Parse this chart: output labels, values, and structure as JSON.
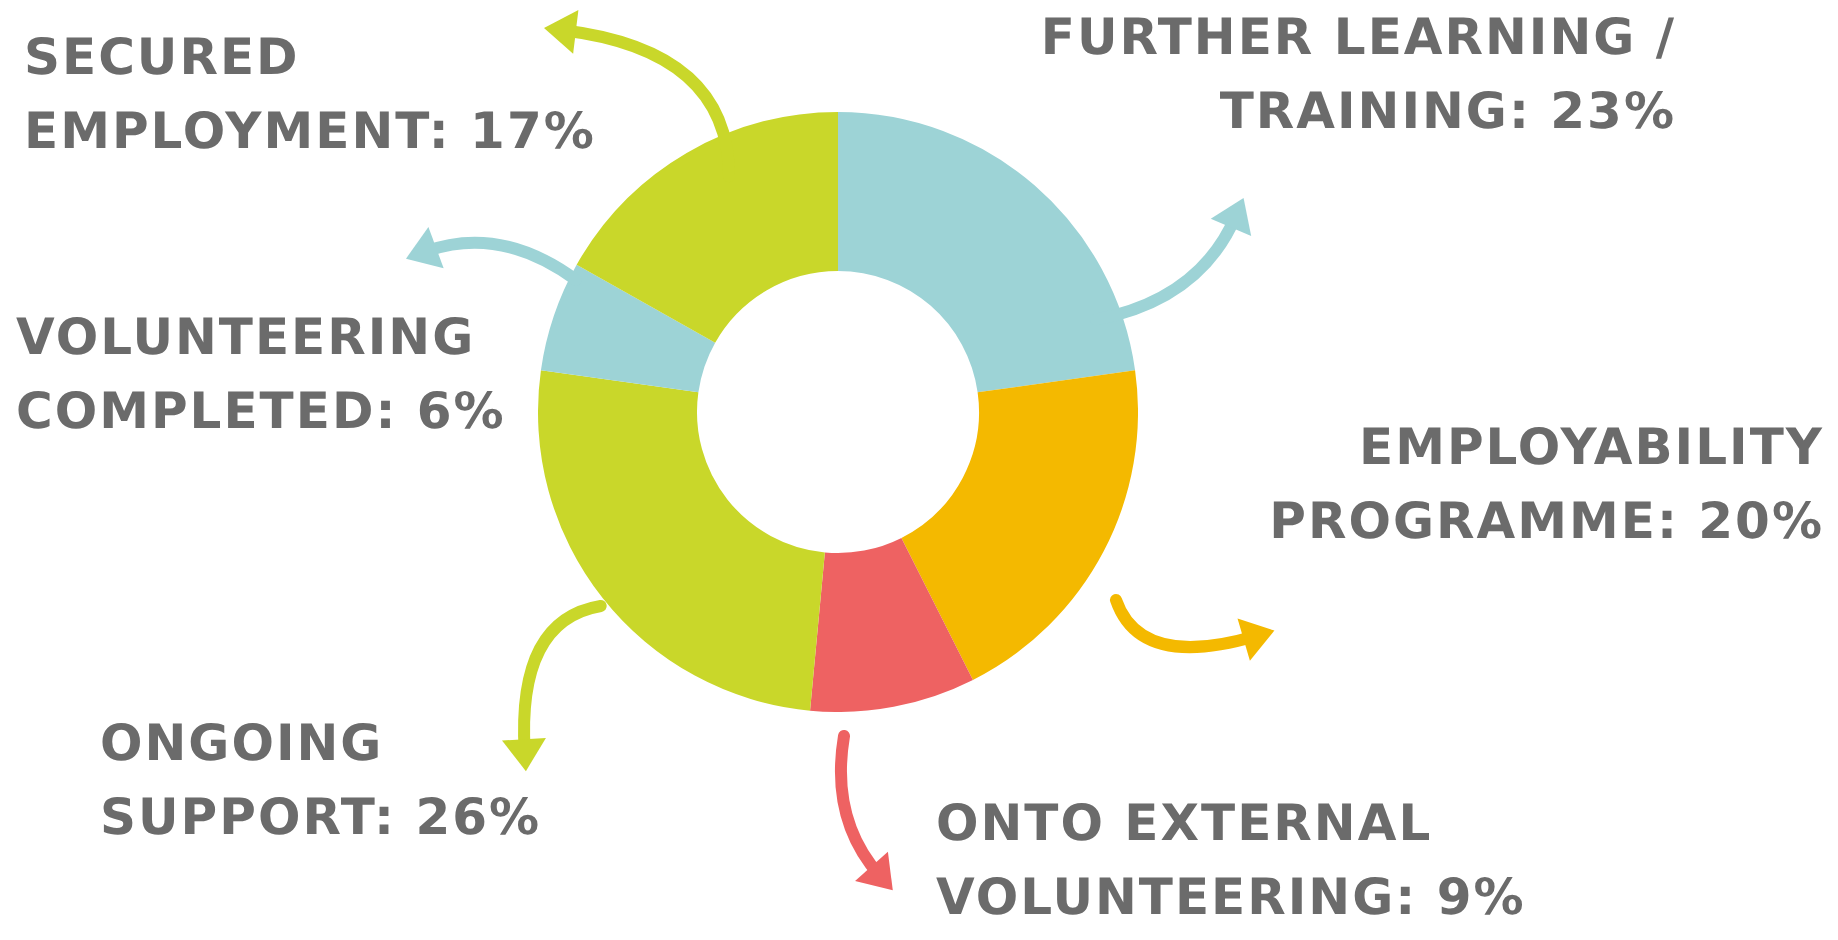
{
  "chart_data": {
    "type": "donut",
    "categories": [
      "FURTHER LEARNING / TRAINING",
      "EMPLOYABILITY PROGRAMME",
      "ONTO EXTERNAL VOLUNTEERING",
      "ONGOING SUPPORT",
      "VOLUNTEERING COMPLETED",
      "SECURED EMPLOYMENT"
    ],
    "values": [
      23,
      20,
      9,
      26,
      6,
      17
    ],
    "value_labels": [
      "23%",
      "20%",
      "9%",
      "26%",
      "6%",
      "17%"
    ],
    "colors": [
      "#9dd3d6",
      "#f4b900",
      "#ee6262",
      "#c9d72a",
      "#9dd3d6",
      "#c9d72a"
    ]
  }
}
